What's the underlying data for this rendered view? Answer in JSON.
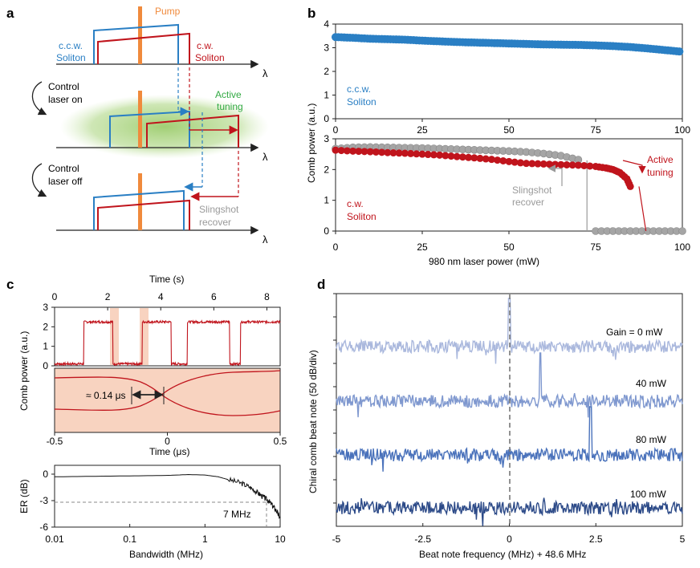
{
  "panel_labels": {
    "a": "a",
    "b": "b",
    "c": "c",
    "d": "d"
  },
  "colors": {
    "ccw": "#2a7fc4",
    "cw": "#c0141c",
    "pump": "#f08a3c",
    "gray": "#a5a5a5",
    "active": "#33aa44",
    "green_glow": "#a9d27f"
  },
  "panel_a": {
    "pump": "Pump",
    "ccw_line1": "c.c.w.",
    "ccw_line2": "Soliton",
    "cw_line1": "c.w.",
    "cw_line2": "Soliton",
    "lambda": "λ",
    "control_on_1": "Control",
    "control_on_2": "laser on",
    "active_1": "Active",
    "active_2": "tuning",
    "control_off_1": "Control",
    "control_off_2": "laser off",
    "sling_1": "Slingshot",
    "sling_2": "recover"
  },
  "panel_b": {
    "ylabel": "Comb power (a.u.)",
    "xlabel": "980 nm laser power (mW)",
    "ccw_1": "c.c.w.",
    "ccw_2": "Soliton",
    "cw_1": "c.w.",
    "cw_2": "Soliton",
    "active_1": "Active",
    "active_2": "tuning",
    "sling_1": "Slingshot",
    "sling_2": "recover"
  },
  "panel_c": {
    "time_s_label": "Time (s)",
    "ylabel": "Comb power (a.u.)",
    "time_us_label": "Time (μs)",
    "annotation": "≈ 0.14 μs",
    "er_label": "ER (dB)",
    "bw_label": "Bandwidth (MHz)",
    "bw_annotation": "7 MHz"
  },
  "panel_d": {
    "ylabel": "Chiral comb beat note (50 dB/div)",
    "xlabel": "Beat note frequency (MHz) + 48.6 MHz",
    "gains": [
      "Gain = 0 mW",
      "40 mW",
      "80 mW",
      "100 mW"
    ]
  },
  "chart_data": [
    {
      "id": "b_top",
      "type": "scatter",
      "title": "",
      "xlabel": "",
      "ylabel": "Comb power (a.u.)",
      "xlim": [
        0,
        100
      ],
      "ylim": [
        0,
        4
      ],
      "x_ticks": [
        "0",
        "25",
        "50",
        "75",
        "100"
      ],
      "y_ticks": [
        "0",
        "1",
        "2",
        "3",
        "4"
      ],
      "series": [
        {
          "name": "c.c.w. Soliton",
          "color": "#2a7fc4",
          "x": [
            0,
            5,
            10,
            15,
            20,
            25,
            30,
            35,
            40,
            45,
            50,
            55,
            60,
            65,
            70,
            75,
            80,
            85,
            90,
            95,
            100
          ],
          "y": [
            3.45,
            3.42,
            3.38,
            3.36,
            3.34,
            3.3,
            3.27,
            3.24,
            3.22,
            3.2,
            3.18,
            3.16,
            3.14,
            3.13,
            3.12,
            3.1,
            3.07,
            3.03,
            2.97,
            2.9,
            2.83
          ]
        }
      ]
    },
    {
      "id": "b_bottom",
      "type": "scatter",
      "xlabel": "980 nm laser power (mW)",
      "ylabel": "Comb power (a.u.)",
      "xlim": [
        0,
        100
      ],
      "ylim": [
        0,
        3
      ],
      "x_ticks": [
        "0",
        "25",
        "50",
        "75",
        "100"
      ],
      "y_ticks": [
        "0",
        "1",
        "2",
        "3"
      ],
      "series": [
        {
          "name": "c.w. Soliton",
          "color": "#c0141c",
          "x": [
            0,
            5,
            10,
            15,
            20,
            25,
            30,
            35,
            40,
            45,
            50,
            55,
            60,
            65,
            70,
            75,
            78,
            80,
            82,
            84,
            85
          ],
          "y": [
            2.63,
            2.6,
            2.58,
            2.55,
            2.53,
            2.5,
            2.47,
            2.42,
            2.38,
            2.33,
            2.26,
            2.2,
            2.18,
            2.16,
            2.14,
            2.1,
            2.05,
            2.0,
            1.9,
            1.7,
            1.45
          ]
        },
        {
          "name": "Slingshot (gray)",
          "color": "#a5a5a5",
          "x": [
            0,
            5,
            10,
            15,
            20,
            25,
            30,
            35,
            40,
            45,
            50,
            55,
            60,
            65,
            70,
            75,
            80,
            85,
            90,
            95,
            100
          ],
          "y": [
            2.68,
            2.72,
            2.73,
            2.72,
            2.71,
            2.7,
            2.68,
            2.66,
            2.64,
            2.62,
            2.6,
            2.57,
            2.52,
            2.45,
            2.32,
            0.0,
            0.0,
            0.0,
            0.0,
            0.0,
            0.0
          ]
        }
      ]
    },
    {
      "id": "c_top",
      "type": "line",
      "xlabel": "Time (s)",
      "ylabel": "Comb power (a.u.)",
      "xlim": [
        0,
        8.5
      ],
      "ylim": [
        0,
        3
      ],
      "x_ticks": [
        "0",
        "2",
        "4",
        "6",
        "8"
      ],
      "y_ticks": [
        "0",
        "1",
        "2",
        "3"
      ],
      "high_intervals_s": [
        [
          1.1,
          2.2
        ],
        [
          3.3,
          4.4
        ],
        [
          5.0,
          6.6
        ],
        [
          7.0,
          8.5
        ]
      ],
      "high_level": 2.25,
      "low_level": 0.1
    },
    {
      "id": "c_middle",
      "type": "line",
      "xlabel": "Time (μs)",
      "xlim": [
        -0.5,
        0.5
      ],
      "x_ticks": [
        "-0.5",
        "0",
        "0.5"
      ],
      "transition_us": 0.14
    },
    {
      "id": "c_bottom",
      "type": "line",
      "xlabel": "Bandwidth (MHz)",
      "ylabel": "ER (dB)",
      "x_scale": "log",
      "xlim": [
        0.01,
        10
      ],
      "ylim": [
        -6,
        1
      ],
      "x_ticks": [
        "0.01",
        "0.1",
        "1",
        "10"
      ],
      "y_ticks": [
        "0",
        "-3",
        "-6"
      ],
      "x": [
        0.01,
        0.03,
        0.1,
        0.3,
        0.6,
        1,
        1.5,
        2,
        3,
        4,
        5,
        6,
        7,
        8,
        9,
        10
      ],
      "y": [
        -0.3,
        -0.25,
        -0.2,
        -0.15,
        -0.05,
        -0.1,
        -0.3,
        -0.6,
        -1.0,
        -1.5,
        -2.1,
        -2.6,
        -3.0,
        -3.6,
        -4.2,
        -5.0
      ],
      "cutoff_mhz": 7
    },
    {
      "id": "d",
      "type": "line",
      "xlabel": "Beat note frequency (MHz) + 48.6 MHz",
      "ylabel": "Chiral comb beat note (50 dB/div)",
      "xlim": [
        -5,
        5
      ],
      "x_ticks": [
        "-5",
        "-2.5",
        "0",
        "2.5",
        "5"
      ],
      "series": [
        {
          "name": "Gain = 0 mW",
          "color": "#aab8dd",
          "peak_mhz": 0.0
        },
        {
          "name": "40 mW",
          "color": "#7f98cf",
          "peak_mhz": 0.9
        },
        {
          "name": "80 mW",
          "color": "#4a72bb",
          "peak_mhz": 2.35
        },
        {
          "name": "100 mW",
          "color": "#2c4a88",
          "peak_mhz": null
        }
      ]
    }
  ]
}
